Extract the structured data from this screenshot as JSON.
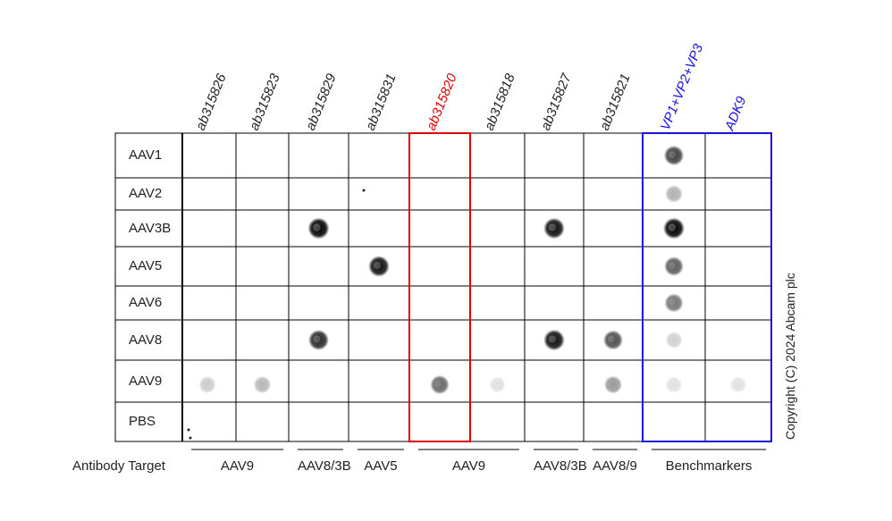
{
  "rows": [
    "AAV1",
    "AAV2",
    "AAV3B",
    "AAV5",
    "AAV6",
    "AAV8",
    "AAV9",
    "PBS"
  ],
  "columns": [
    {
      "label": "ab315826",
      "color": "#222222"
    },
    {
      "label": "ab315823",
      "color": "#222222"
    },
    {
      "label": "ab315829",
      "color": "#222222"
    },
    {
      "label": "ab315831",
      "color": "#222222"
    },
    {
      "label": "ab315820",
      "color": "#e00000"
    },
    {
      "label": "ab315818",
      "color": "#222222"
    },
    {
      "label": "ab315827",
      "color": "#222222"
    },
    {
      "label": "ab315821",
      "color": "#222222"
    },
    {
      "label": "VP1+VP2+VP3",
      "color": "#1a10e0"
    },
    {
      "label": "ADK9",
      "color": "#1a10e0"
    }
  ],
  "footer_title": "Antibody Target",
  "groups": [
    {
      "label": "AAV9",
      "from": 0,
      "to": 1
    },
    {
      "label": "AAV8/3B",
      "from": 2,
      "to": 2
    },
    {
      "label": "AAV5",
      "from": 3,
      "to": 3
    },
    {
      "label": "AAV9",
      "from": 4,
      "to": 5
    },
    {
      "label": "AAV8/3B",
      "from": 6,
      "to": 6
    },
    {
      "label": "AAV8/9",
      "from": 7,
      "to": 7
    },
    {
      "label": "Benchmarkers",
      "from": 8,
      "to": 9
    }
  ],
  "highlights": [
    {
      "from": 4,
      "to": 4,
      "color": "#e00000"
    },
    {
      "from": 8,
      "to": 9,
      "color": "#1a10e0"
    }
  ],
  "copyright": "Copyright (C) 2024 Abcam plc",
  "spots": [
    {
      "row": "AAV3B",
      "col": 2,
      "intensity": 1.0
    },
    {
      "row": "AAV8",
      "col": 2,
      "intensity": 0.85
    },
    {
      "row": "AAV5",
      "col": 3,
      "intensity": 0.95
    },
    {
      "row": "AAV9",
      "col": 0,
      "intensity": 0.2
    },
    {
      "row": "AAV9",
      "col": 1,
      "intensity": 0.28
    },
    {
      "row": "AAV9",
      "col": 4,
      "intensity": 0.6
    },
    {
      "row": "AAV9",
      "col": 5,
      "intensity": 0.1
    },
    {
      "row": "AAV3B",
      "col": 6,
      "intensity": 0.95
    },
    {
      "row": "AAV8",
      "col": 6,
      "intensity": 0.95
    },
    {
      "row": "AAV8",
      "col": 7,
      "intensity": 0.7
    },
    {
      "row": "AAV9",
      "col": 7,
      "intensity": 0.4
    },
    {
      "row": "AAV1",
      "col": 8,
      "intensity": 0.75
    },
    {
      "row": "AAV2",
      "col": 8,
      "intensity": 0.3
    },
    {
      "row": "AAV3B",
      "col": 8,
      "intensity": 1.0
    },
    {
      "row": "AAV5",
      "col": 8,
      "intensity": 0.65
    },
    {
      "row": "AAV6",
      "col": 8,
      "intensity": 0.55
    },
    {
      "row": "AAV8",
      "col": 8,
      "intensity": 0.18
    },
    {
      "row": "AAV9",
      "col": 8,
      "intensity": 0.12
    },
    {
      "row": "AAV9",
      "col": 9,
      "intensity": 0.12
    }
  ]
}
